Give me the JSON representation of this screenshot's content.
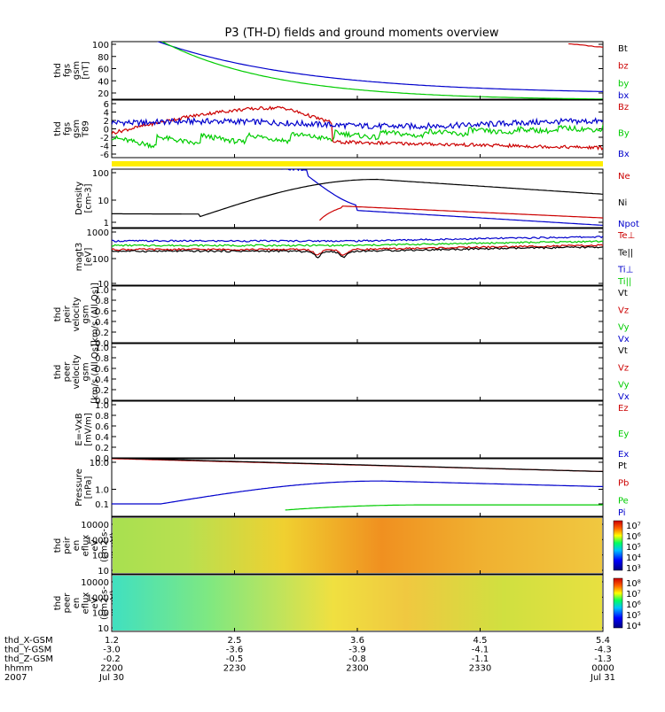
{
  "title": "P3 (TH-D) fields and ground moments overview",
  "chart_data": [
    {
      "id": "fgs",
      "type": "line",
      "ylabel": [
        "thd",
        "fgs",
        "gsm",
        "[nT]"
      ],
      "yticks": [
        "100",
        "80",
        "60",
        "40",
        "20"
      ],
      "ylim": [
        10,
        105
      ],
      "legend": [
        {
          "name": "Bt",
          "color": "#000000"
        },
        {
          "name": "bz",
          "color": "#cc0000"
        },
        {
          "name": "by",
          "color": "#00cc00"
        },
        {
          "name": "bx",
          "color": "#0000cc"
        }
      ]
    },
    {
      "id": "t89",
      "type": "line",
      "ylabel": [
        "thd",
        "fgs",
        "gsm",
        "T89"
      ],
      "yticks": [
        "6",
        "4",
        "2",
        "0",
        "-2",
        "-4",
        "-6"
      ],
      "ylim": [
        -7,
        7
      ],
      "legend": [
        {
          "name": "Bz",
          "color": "#cc0000"
        },
        {
          "name": "By",
          "color": "#00cc00"
        },
        {
          "name": "Bx",
          "color": "#0000cc"
        }
      ]
    },
    {
      "id": "density",
      "type": "line",
      "log": true,
      "ylabel": [
        "Density",
        "[cm-3]"
      ],
      "yticks": [
        "100",
        "10",
        "1"
      ],
      "legend": [
        {
          "name": "Ne",
          "color": "#cc0000"
        },
        {
          "name": "Ni",
          "color": "#000000"
        },
        {
          "name": "Npot",
          "color": "#0000cc"
        }
      ]
    },
    {
      "id": "temp",
      "type": "line",
      "log": true,
      "ylabel": [
        "magt3",
        "[eV]"
      ],
      "yticks": [
        "1000",
        "100",
        "10"
      ],
      "legend": [
        {
          "name": "Te⊥",
          "color": "#cc0000"
        },
        {
          "name": "Te||",
          "color": "#000000"
        },
        {
          "name": "Ti⊥",
          "color": "#0000cc"
        },
        {
          "name": "Ti||",
          "color": "#00cc00"
        }
      ]
    },
    {
      "id": "vpeir",
      "type": "line",
      "ylabel": [
        "thd",
        "peir",
        "velocity",
        "gsm",
        "[km/s (All Qs)]"
      ],
      "yticks": [
        "1.0",
        "0.8",
        "0.6",
        "0.4",
        "0.2",
        "0.0"
      ],
      "legend": [
        {
          "name": "Vt",
          "color": "#000000"
        },
        {
          "name": "Vz",
          "color": "#cc0000"
        },
        {
          "name": "Vy",
          "color": "#00cc00"
        },
        {
          "name": "Vx",
          "color": "#0000cc"
        }
      ]
    },
    {
      "id": "vpeer",
      "type": "line",
      "ylabel": [
        "thd",
        "peer",
        "velocity",
        "gsm",
        "[km/s (All Qs)]"
      ],
      "yticks": [
        "1.0",
        "0.8",
        "0.6",
        "0.4",
        "0.2",
        "0.0"
      ],
      "legend": [
        {
          "name": "Vt",
          "color": "#000000"
        },
        {
          "name": "Vz",
          "color": "#cc0000"
        },
        {
          "name": "Vy",
          "color": "#00cc00"
        },
        {
          "name": "Vx",
          "color": "#0000cc"
        }
      ]
    },
    {
      "id": "efield",
      "type": "line",
      "ylabel": [
        "E=-VxB",
        "[mV/m]"
      ],
      "yticks": [
        "1.0",
        "0.8",
        "0.6",
        "0.4",
        "0.2",
        "0.0"
      ],
      "legend": [
        {
          "name": "Ez",
          "color": "#cc0000"
        },
        {
          "name": "Ey",
          "color": "#00cc00"
        },
        {
          "name": "Ex",
          "color": "#0000cc"
        }
      ]
    },
    {
      "id": "pressure",
      "type": "line",
      "log": true,
      "ylabel": [
        "Pressure",
        "[nPa]"
      ],
      "yticks": [
        "10.0",
        "1.0",
        "0.1"
      ],
      "legend": [
        {
          "name": "Pt",
          "color": "#000000"
        },
        {
          "name": "Pb",
          "color": "#cc0000"
        },
        {
          "name": "Pe",
          "color": "#00cc00"
        },
        {
          "name": "Pi",
          "color": "#0000cc"
        }
      ]
    },
    {
      "id": "peir_spec",
      "type": "heatmap",
      "ylabel": [
        "thd",
        "peir",
        "en",
        "eflux",
        "eV",
        "(cm2-s-",
        "sr-eV)"
      ],
      "yticks": [
        "10000",
        "1000",
        "100",
        "10"
      ],
      "colorbar_ticks": [
        "10⁷",
        "10⁶",
        "10⁵",
        "10⁴",
        "10³"
      ]
    },
    {
      "id": "peer_spec",
      "type": "heatmap",
      "ylabel": [
        "thd",
        "peer",
        "en",
        "eflux",
        "eV",
        "(cm2-s-",
        "sr-eV)"
      ],
      "yticks": [
        "10000",
        "1000",
        "100",
        "10"
      ],
      "colorbar_ticks": [
        "10⁸",
        "10⁷",
        "10⁶",
        "10⁵",
        "10⁴"
      ]
    }
  ],
  "xaxis": {
    "row_labels": [
      "thd_X-GSM",
      "thd_Y-GSM",
      "thd_Z-GSM",
      "hhmm",
      "2007"
    ],
    "columns": [
      [
        "1.2",
        "-3.0",
        "-0.2",
        "2200",
        "Jul 30"
      ],
      [
        "2.5",
        "-3.6",
        "-0.5",
        "2230",
        ""
      ],
      [
        "3.6",
        "-3.9",
        "-0.8",
        "2300",
        ""
      ],
      [
        "4.5",
        "-4.1",
        "-1.1",
        "2330",
        ""
      ],
      [
        "5.4",
        "-4.3",
        "-1.3",
        "0000",
        "Jul 31"
      ]
    ]
  }
}
